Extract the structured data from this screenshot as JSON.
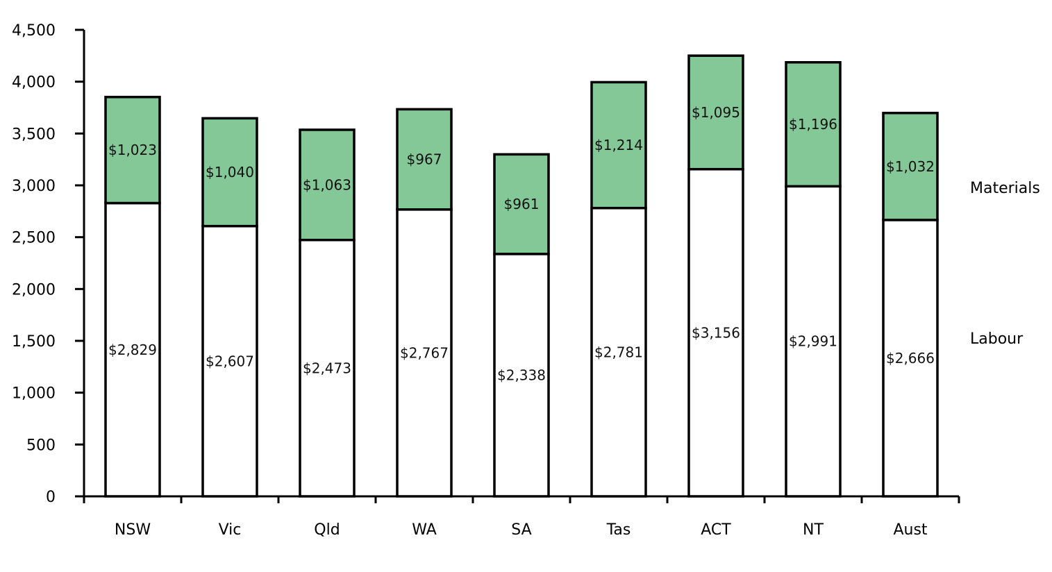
{
  "chart_data": {
    "type": "bar",
    "stacked": true,
    "title": "",
    "xlabel": "",
    "ylabel": "",
    "ylim": [
      0,
      4500
    ],
    "yticks": [
      0,
      500,
      1000,
      1500,
      2000,
      2500,
      3000,
      3500,
      4000,
      4500
    ],
    "ytick_labels": [
      "0",
      "500",
      "1,000",
      "1,500",
      "2,000",
      "2,500",
      "3,000",
      "3,500",
      "4,000",
      "4,500"
    ],
    "categories": [
      "NSW",
      "Vic",
      "Qld",
      "WA",
      "SA",
      "Tas",
      "ACT",
      "NT",
      "Aust"
    ],
    "series": [
      {
        "name": "Labour",
        "color": "#ffffff",
        "values": [
          2829,
          2607,
          2473,
          2767,
          2338,
          2781,
          3156,
          2991,
          2666
        ],
        "labels": [
          "$2,829",
          "$2,607",
          "$2,473",
          "$2,767",
          "$2,338",
          "$2,781",
          "$3,156",
          "$2,991",
          "$2,666"
        ]
      },
      {
        "name": "Materials",
        "color": "#84c898",
        "values": [
          1023,
          1040,
          1063,
          967,
          961,
          1214,
          1095,
          1196,
          1032
        ],
        "labels": [
          "$1,023",
          "$1,040",
          "$1,063",
          "$967",
          "$961",
          "$1,214",
          "$1,095",
          "$1,196",
          "$1,032"
        ]
      }
    ],
    "legend_placement": "right",
    "grid": false
  }
}
